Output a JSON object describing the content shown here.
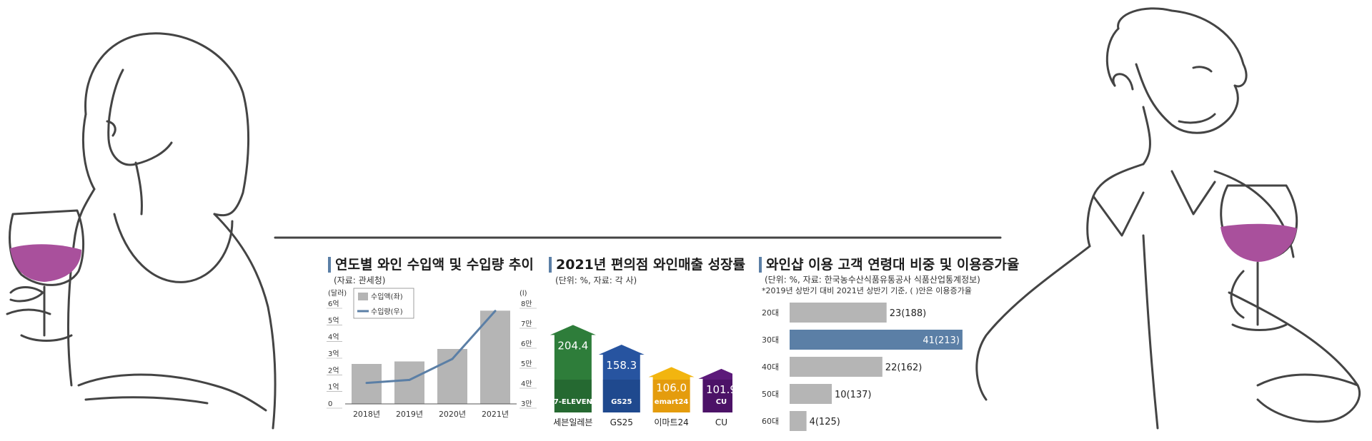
{
  "charts": [
    {
      "title": "연도별 와인 수입액 및 수입량 추이",
      "source": "(자료: 관세청)",
      "left_unit": "(달러)",
      "right_unit": "(l)",
      "legend": [
        "수입액(좌)",
        "수입량(우)"
      ]
    },
    {
      "title": "2021년 편의점 와인매출 성장률",
      "source": "(단위: %, 자료: 각 사)"
    },
    {
      "title": "와인샵 이용 고객 연령대 비중 및 이용증가율",
      "source": "(단위: %, 자료: 한국농수산식품유통공사 식품산업통계정보)",
      "note": "*2019년 상반기 대비 2021년 상반기 기준, ( )안은 이용증가율"
    }
  ],
  "chart_data": [
    {
      "type": "bar",
      "categories": [
        "2018년",
        "2019년",
        "2020년",
        "2021년"
      ],
      "y_ticks": [
        "0",
        "1억",
        "2억",
        "3억",
        "4억",
        "5억",
        "6억"
      ],
      "y2_ticks": [
        "3만",
        "4만",
        "5만",
        "6만",
        "7만",
        "8만"
      ],
      "ylim": [
        0,
        600000000
      ],
      "y2lim": [
        30000,
        80000
      ],
      "series": [
        {
          "name": "수입액(좌)",
          "type": "bar",
          "values": [
            240000000,
            255000000,
            330000000,
            560000000
          ]
        },
        {
          "name": "수입량(우)",
          "type": "line",
          "values": [
            40500,
            42000,
            52500,
            76500
          ]
        }
      ],
      "colors": {
        "bar": "#b5b5b5",
        "line": "#5b7fa6"
      }
    },
    {
      "type": "bar",
      "categories": [
        "세븐일레븐",
        "GS25",
        "이마트24",
        "CU"
      ],
      "values": [
        204.4,
        158.3,
        106.0,
        101.9
      ],
      "value_labels": [
        "204.4",
        "158.3",
        "106.0",
        "101.9"
      ],
      "brands": [
        "7-ELEVEN",
        "GS25",
        "emart24",
        "CU"
      ],
      "colors": [
        "#2e7d3a",
        "#2754a0",
        "#f2b50f",
        "#5c1a7a"
      ],
      "dark_colors": [
        "#1f5a2a",
        "#193f80",
        "#d8860c",
        "#3f0d57"
      ]
    },
    {
      "type": "bar",
      "orientation": "horizontal",
      "categories": [
        "20대",
        "30대",
        "40대",
        "50대",
        "60대"
      ],
      "values": [
        23,
        41,
        22,
        10,
        4
      ],
      "growth": [
        188,
        213,
        162,
        137,
        125
      ],
      "value_labels": [
        "23(188)",
        "41(213)",
        "22(162)",
        "10(137)",
        "4(125)"
      ],
      "colors": {
        "bar": "#b5b5b5",
        "highlight": "#5b7fa6"
      }
    }
  ]
}
